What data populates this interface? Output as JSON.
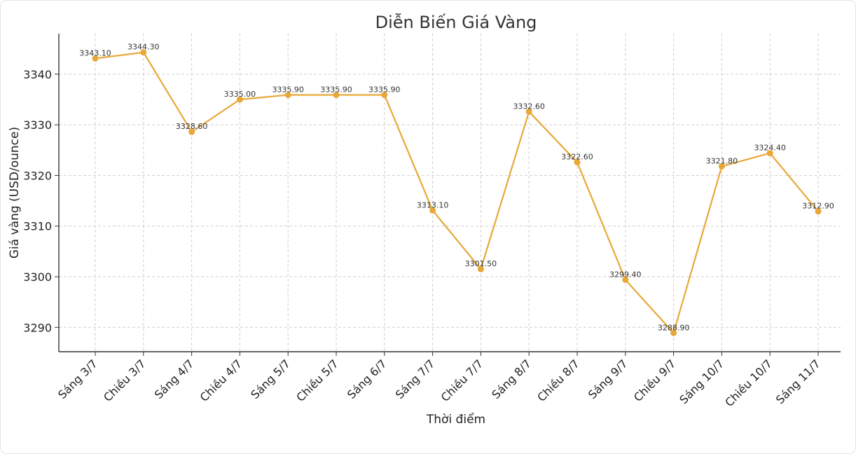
{
  "chart_data": {
    "type": "line",
    "title": "Diễn Biến Giá Vàng",
    "xlabel": "Thời điểm",
    "ylabel": "Giá vàng (USD/ounce)",
    "categories": [
      "Sáng 3/7",
      "Chiều 3/7",
      "Sáng 4/7",
      "Chiều 4/7",
      "Sáng 5/7",
      "Chiều 5/7",
      "Sáng 6/7",
      "Sáng 7/7",
      "Chiều 7/7",
      "Sáng 8/7",
      "Chiều 8/7",
      "Sáng 9/7",
      "Chiều 9/7",
      "Sáng 10/7",
      "Chiều 10/7",
      "Sáng 11/7"
    ],
    "values": [
      3343.1,
      3344.3,
      3328.6,
      3335.0,
      3335.9,
      3335.9,
      3335.9,
      3313.1,
      3301.5,
      3332.6,
      3322.6,
      3299.4,
      3288.9,
      3321.8,
      3324.4,
      3312.9
    ],
    "data_labels": [
      "3343.10",
      "3344.30",
      "3328.60",
      "3335.00",
      "3335.90",
      "3335.90",
      "3335.90",
      "3313.10",
      "3301.50",
      "3332.60",
      "3322.60",
      "3299.40",
      "3288.90",
      "3321.80",
      "3324.40",
      "3312.90"
    ],
    "yticks": [
      3290,
      3300,
      3310,
      3320,
      3330,
      3340
    ],
    "ylim": [
      3285.2,
      3348.0
    ],
    "grid": true,
    "color": "#e8a838"
  }
}
